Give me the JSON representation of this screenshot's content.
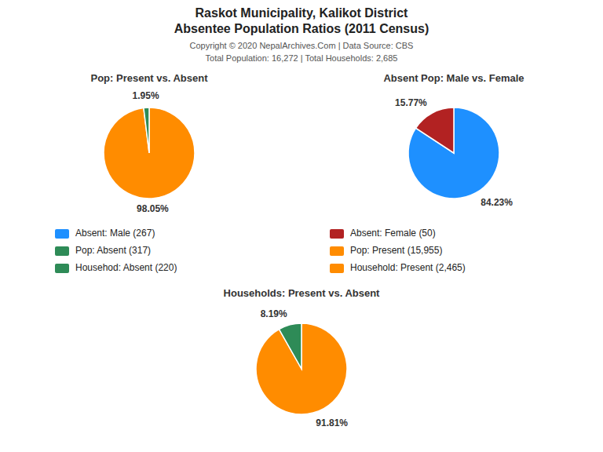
{
  "title": [
    "Raskot Municipality, Kalikot District",
    "Absentee Population Ratios (2011 Census)"
  ],
  "subtitle": [
    "Copyright © 2020 NepalArchives.Com | Data Source: CBS",
    "Total Population: 16,272 | Total Households: 2,685"
  ],
  "chart_data": [
    {
      "type": "pie",
      "title": "Pop: Present vs. Absent",
      "categories": [
        "Pop: Present (15,955)",
        "Pop: Absent (317)"
      ],
      "values": [
        98.05,
        1.95
      ],
      "value_labels": [
        "98.05%",
        "1.95%"
      ],
      "colors": [
        "#FF8C00",
        "#2E8B57"
      ],
      "data_labels": true
    },
    {
      "type": "pie",
      "title": "Absent Pop: Male vs. Female",
      "categories": [
        "Absent: Male (267)",
        "Absent: Female (50)"
      ],
      "values": [
        84.23,
        15.77
      ],
      "value_labels": [
        "84.23%",
        "15.77%"
      ],
      "colors": [
        "#1E90FF",
        "#B22222"
      ],
      "data_labels": true
    },
    {
      "type": "pie",
      "title": "Households: Present vs. Absent",
      "categories": [
        "Household: Present (2,465)",
        "Househod: Absent (220)"
      ],
      "values": [
        91.81,
        8.19
      ],
      "value_labels": [
        "91.81%",
        "8.19%"
      ],
      "colors": [
        "#FF8C00",
        "#2E8B57"
      ],
      "data_labels": true
    }
  ]
}
